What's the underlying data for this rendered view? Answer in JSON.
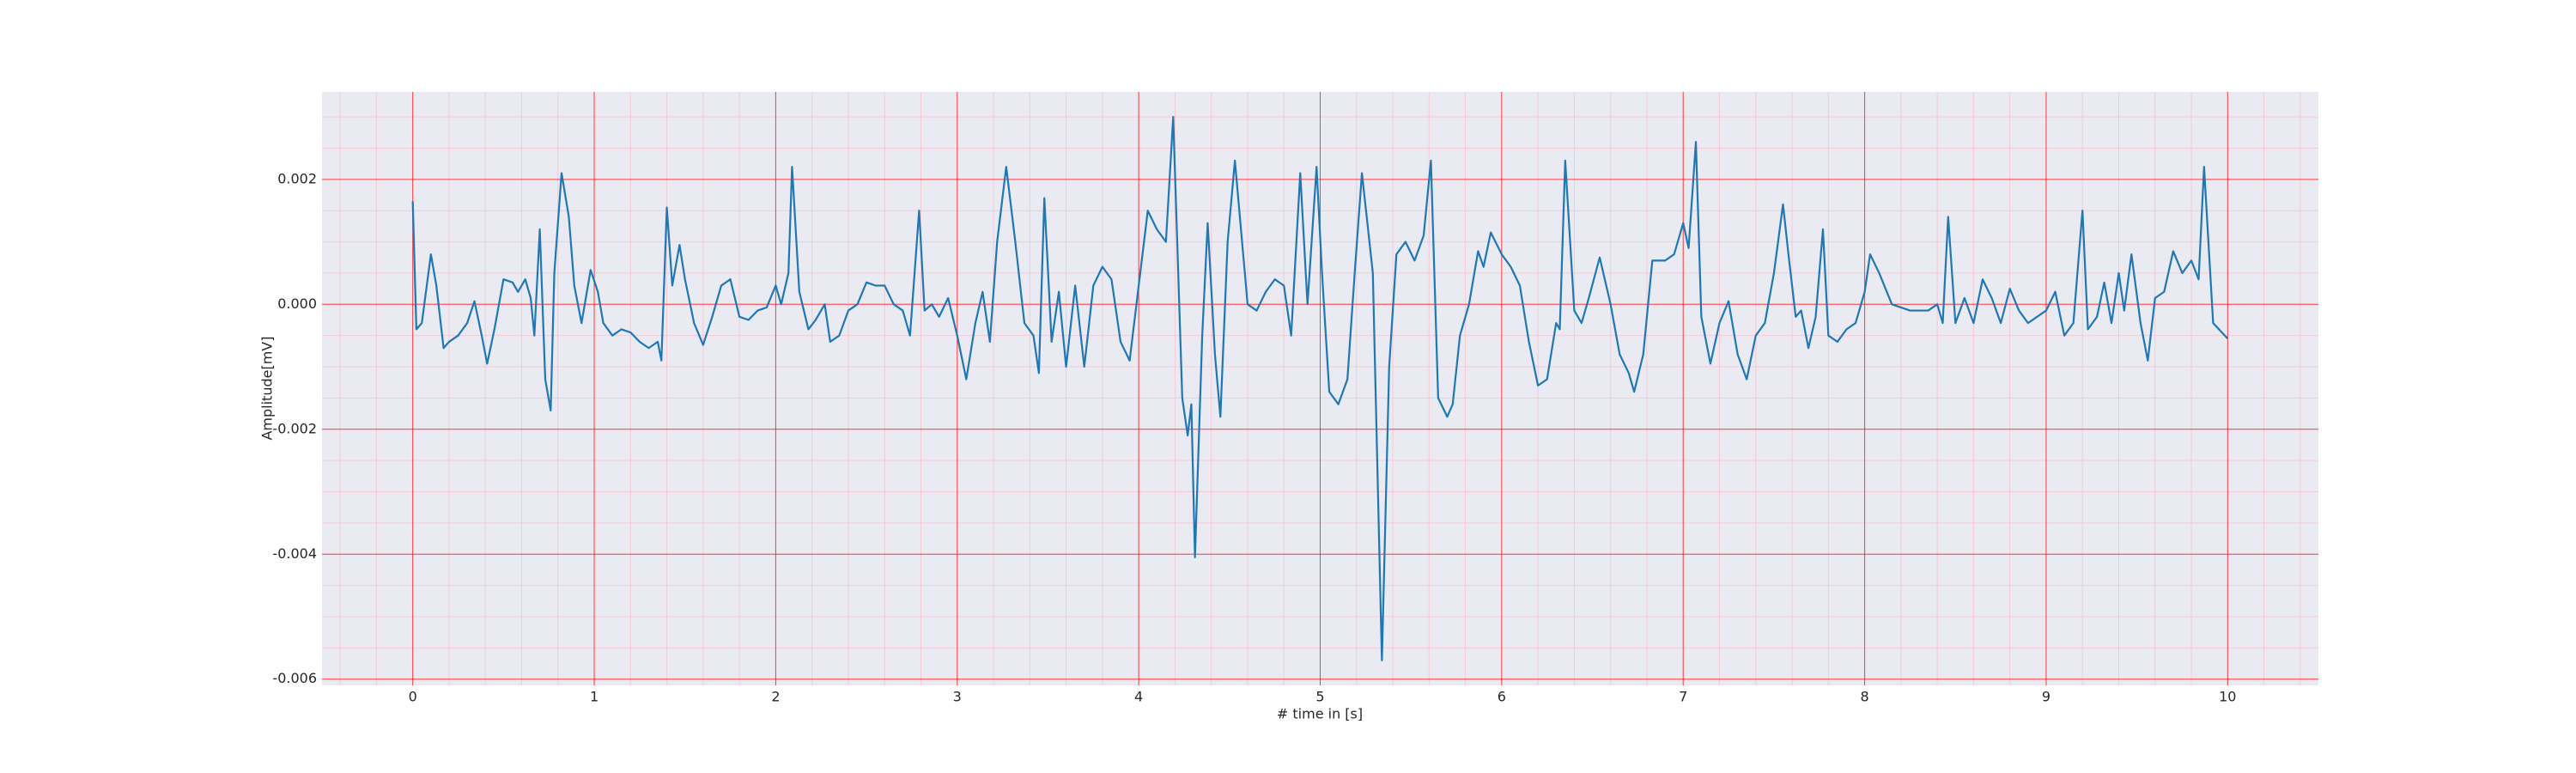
{
  "chart_data": {
    "type": "line",
    "xlabel": "# time in [s]",
    "ylabel": "Amplitude[mV]",
    "x": [
      0,
      0.02,
      0.05,
      0.1,
      0.13,
      0.17,
      0.2,
      0.25,
      0.3,
      0.34,
      0.38,
      0.41,
      0.45,
      0.5,
      0.55,
      0.58,
      0.62,
      0.65,
      0.67,
      0.7,
      0.73,
      0.76,
      0.78,
      0.82,
      0.86,
      0.89,
      0.93,
      0.98,
      1.02,
      1.05,
      1.1,
      1.15,
      1.2,
      1.25,
      1.3,
      1.35,
      1.37,
      1.4,
      1.43,
      1.47,
      1.5,
      1.55,
      1.6,
      1.65,
      1.7,
      1.75,
      1.8,
      1.85,
      1.9,
      1.95,
      2.0,
      2.03,
      2.07,
      2.09,
      2.13,
      2.18,
      2.22,
      2.27,
      2.3,
      2.35,
      2.4,
      2.45,
      2.5,
      2.55,
      2.6,
      2.65,
      2.7,
      2.74,
      2.79,
      2.82,
      2.86,
      2.9,
      2.95,
      3.0,
      3.05,
      3.1,
      3.14,
      3.18,
      3.22,
      3.27,
      3.32,
      3.37,
      3.42,
      3.45,
      3.48,
      3.52,
      3.56,
      3.6,
      3.65,
      3.7,
      3.75,
      3.8,
      3.85,
      3.9,
      3.95,
      4.0,
      4.05,
      4.1,
      4.15,
      4.19,
      4.24,
      4.27,
      4.29,
      4.31,
      4.35,
      4.38,
      4.42,
      4.45,
      4.49,
      4.53,
      4.6,
      4.65,
      4.7,
      4.75,
      4.8,
      4.84,
      4.89,
      4.93,
      4.98,
      5.01,
      5.05,
      5.1,
      5.15,
      5.19,
      5.23,
      5.29,
      5.34,
      5.38,
      5.42,
      5.47,
      5.52,
      5.57,
      5.61,
      5.65,
      5.7,
      5.73,
      5.77,
      5.82,
      5.87,
      5.9,
      5.94,
      6.0,
      6.05,
      6.1,
      6.15,
      6.2,
      6.25,
      6.3,
      6.32,
      6.35,
      6.4,
      6.44,
      6.48,
      6.54,
      6.6,
      6.65,
      6.7,
      6.73,
      6.78,
      6.83,
      6.9,
      6.95,
      7.0,
      7.03,
      7.07,
      7.1,
      7.15,
      7.2,
      7.25,
      7.3,
      7.35,
      7.4,
      7.45,
      7.5,
      7.55,
      7.58,
      7.62,
      7.65,
      7.69,
      7.73,
      7.77,
      7.8,
      7.85,
      7.9,
      7.95,
      8.0,
      8.03,
      8.08,
      8.15,
      8.25,
      8.35,
      8.4,
      8.43,
      8.46,
      8.5,
      8.55,
      8.6,
      8.65,
      8.7,
      8.75,
      8.8,
      8.85,
      8.9,
      9.0,
      9.05,
      9.1,
      9.15,
      9.2,
      9.23,
      9.28,
      9.32,
      9.36,
      9.4,
      9.43,
      9.47,
      9.52,
      9.56,
      9.6,
      9.65,
      9.7,
      9.75,
      9.8,
      9.84,
      9.87,
      9.92,
      10.0
    ],
    "values": [
      0.00165,
      -0.0004,
      -0.0003,
      0.0008,
      0.0003,
      -0.0007,
      -0.0006,
      -0.0005,
      -0.0003,
      5e-05,
      -0.0005,
      -0.00095,
      -0.0004,
      0.0004,
      0.00035,
      0.0002,
      0.0004,
      0.0001,
      -0.0005,
      0.0012,
      -0.0012,
      -0.0017,
      0.0005,
      0.0021,
      0.0014,
      0.0003,
      -0.0003,
      0.00055,
      0.0002,
      -0.0003,
      -0.0005,
      -0.0004,
      -0.00045,
      -0.0006,
      -0.0007,
      -0.0006,
      -0.0009,
      0.00155,
      0.0003,
      0.00095,
      0.0004,
      -0.0003,
      -0.00065,
      -0.0002,
      0.0003,
      0.0004,
      -0.0002,
      -0.00025,
      -0.0001,
      -5e-05,
      0.0003,
      0.0,
      0.0005,
      0.0022,
      0.0002,
      -0.0004,
      -0.00025,
      0.0,
      -0.0006,
      -0.0005,
      -0.0001,
      0.0,
      0.00035,
      0.0003,
      0.0003,
      0.0,
      -0.0001,
      -0.0005,
      0.0015,
      -0.0001,
      0.0,
      -0.0002,
      0.0001,
      -0.0005,
      -0.0012,
      -0.0003,
      0.0002,
      -0.0006,
      0.001,
      0.0022,
      0.001,
      -0.0003,
      -0.0005,
      -0.0011,
      0.0017,
      -0.0006,
      0.0002,
      -0.001,
      0.0003,
      -0.001,
      0.0003,
      0.0006,
      0.0004,
      -0.0006,
      -0.0009,
      0.0003,
      0.0015,
      0.0012,
      0.001,
      0.003,
      -0.0015,
      -0.0021,
      -0.0016,
      -0.00405,
      -0.0005,
      0.0013,
      -0.0008,
      -0.0018,
      0.001,
      0.0023,
      0.0,
      -0.0001,
      0.0002,
      0.0004,
      0.0003,
      -0.0005,
      0.0021,
      0.0,
      0.0022,
      0.0005,
      -0.0014,
      -0.0016,
      -0.0012,
      0.0005,
      0.0021,
      0.0005,
      -0.0057,
      -0.001,
      0.0008,
      0.001,
      0.0007,
      0.0011,
      0.0023,
      -0.0015,
      -0.0018,
      -0.0016,
      -0.0005,
      0.0,
      0.00085,
      0.0006,
      0.00115,
      0.0008,
      0.0006,
      0.0003,
      -0.0006,
      -0.0013,
      -0.0012,
      -0.0003,
      -0.0004,
      0.0023,
      -0.0001,
      -0.0003,
      0.0001,
      0.00075,
      0.0,
      -0.0008,
      -0.0011,
      -0.0014,
      -0.0008,
      0.0007,
      0.0007,
      0.0008,
      0.0013,
      0.0009,
      0.0026,
      -0.0002,
      -0.00095,
      -0.0003,
      5e-05,
      -0.0008,
      -0.0012,
      -0.0005,
      -0.0003,
      0.0005,
      0.0016,
      0.0008,
      -0.0002,
      -0.0001,
      -0.0007,
      -0.0002,
      0.0012,
      -0.0005,
      -0.0006,
      -0.0004,
      -0.0003,
      0.0002,
      0.0008,
      0.0005,
      0.0,
      -0.0001,
      -0.0001,
      0.0,
      -0.0003,
      0.0014,
      -0.0003,
      0.0001,
      -0.0003,
      0.0004,
      0.0001,
      -0.0003,
      0.00025,
      -0.0001,
      -0.0003,
      -0.0001,
      0.0002,
      -0.0005,
      -0.0003,
      0.0015,
      -0.0004,
      -0.0002,
      0.00035,
      -0.0003,
      0.0005,
      -0.0001,
      0.0008,
      -0.0003,
      -0.0009,
      0.0001,
      0.0002,
      0.00085,
      0.0005,
      0.0007,
      0.0004,
      0.0022,
      -0.0003,
      -0.00055
    ],
    "color": "#1f77b4",
    "xlim": [
      -0.5,
      10.5
    ],
    "xticks": [
      0,
      1,
      2,
      3,
      4,
      5,
      6,
      7,
      8,
      9,
      10
    ],
    "ylim": [
      -0.0061,
      0.0034
    ],
    "yticks": [
      -0.006,
      -0.004,
      -0.002,
      {
        "value": 0,
        "label": "0.000"
      },
      0.002
    ],
    "grid": true,
    "grid_color": "#ff0000",
    "minor_grid": true,
    "minor_grid_color": "#ffb6c1"
  }
}
